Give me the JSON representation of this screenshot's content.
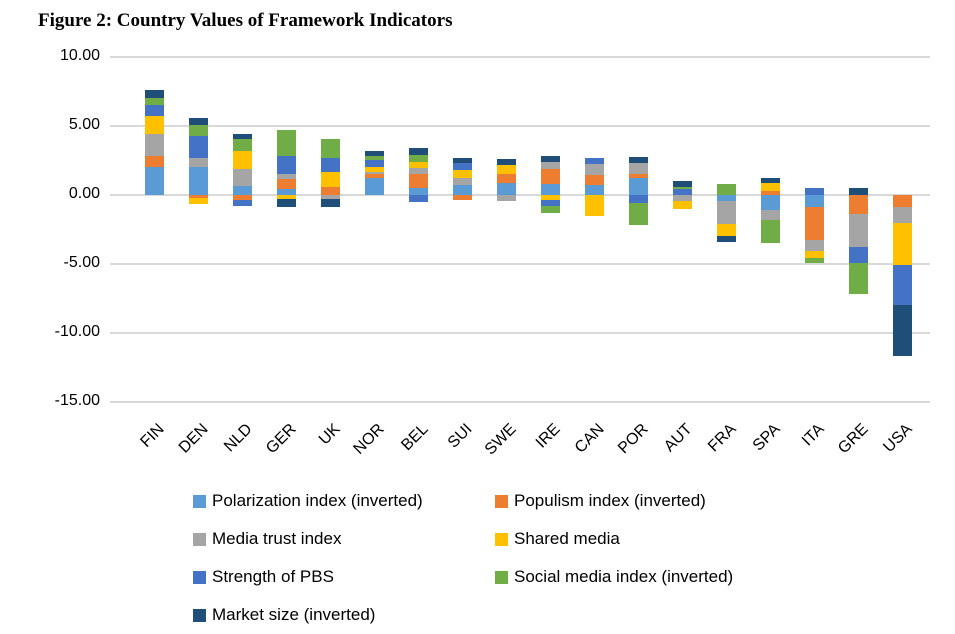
{
  "title": "Figure 2: Country Values of Framework Indicators",
  "chart_data": {
    "type": "bar",
    "stacked": true,
    "title": "Figure 2: Country Values of Framework Indicators",
    "categories": [
      "FIN",
      "DEN",
      "NLD",
      "GER",
      "UK",
      "NOR",
      "BEL",
      "SUI",
      "SWE",
      "IRE",
      "CAN",
      "POR",
      "AUT",
      "FRA",
      "SPA",
      "ITA",
      "GRE",
      "USA"
    ],
    "series": [
      {
        "name": "Polarization index (inverted)",
        "color": "#5B9BD5",
        "values": [
          2.0,
          2.0,
          0.65,
          0.4,
          0.0,
          1.2,
          0.5,
          0.75,
          0.9,
          0.8,
          0.7,
          1.2,
          0.0,
          -0.4,
          -1.1,
          -0.85,
          0.0,
          0.0
        ]
      },
      {
        "name": "Populism index (inverted)",
        "color": "#ED7D31",
        "values": [
          0.8,
          -0.2,
          -0.35,
          0.75,
          0.55,
          0.35,
          1.0,
          -0.35,
          0.6,
          1.1,
          0.75,
          0.3,
          0.0,
          0.0,
          0.3,
          -2.4,
          -1.4,
          -0.9
        ]
      },
      {
        "name": "Media trust index",
        "color": "#A5A5A5",
        "values": [
          1.6,
          0.65,
          1.2,
          0.35,
          -0.3,
          0.15,
          0.45,
          0.45,
          -0.4,
          0.5,
          0.8,
          0.85,
          -0.4,
          -1.7,
          -0.7,
          -0.8,
          -2.4,
          -1.1
        ]
      },
      {
        "name": "Shared media",
        "color": "#FFC000",
        "values": [
          1.3,
          -0.45,
          1.35,
          -0.3,
          1.15,
          0.3,
          0.45,
          0.6,
          0.65,
          -0.35,
          -1.5,
          0.0,
          -0.6,
          -0.85,
          0.6,
          -0.55,
          0.0,
          -3.1
        ]
      },
      {
        "name": "Strength of PBS",
        "color": "#4472C4",
        "values": [
          0.8,
          1.6,
          -0.45,
          1.35,
          0.95,
          0.55,
          -0.5,
          0.5,
          0.0,
          -0.45,
          0.45,
          -0.6,
          0.4,
          0.0,
          0.0,
          0.5,
          -1.1,
          -2.9
        ]
      },
      {
        "name": "Social media index (inverted)",
        "color": "#70AD47",
        "values": [
          0.55,
          0.8,
          0.85,
          1.85,
          1.4,
          0.25,
          0.5,
          0.0,
          0.0,
          -0.5,
          0.0,
          -1.6,
          0.15,
          0.8,
          -1.65,
          -0.35,
          -2.25,
          0.0
        ]
      },
      {
        "name": "Market size (inverted)",
        "color": "#1F4E79",
        "values": [
          0.55,
          0.5,
          0.4,
          -0.6,
          -0.6,
          0.4,
          0.5,
          0.4,
          0.45,
          0.4,
          0.0,
          0.4,
          0.5,
          -0.45,
          0.3,
          0.0,
          0.5,
          -3.7
        ]
      }
    ],
    "ylim": [
      -15,
      10
    ],
    "ytick_step": 5,
    "ytick_decimals": 2,
    "grid": true,
    "legend_position": "bottom"
  }
}
